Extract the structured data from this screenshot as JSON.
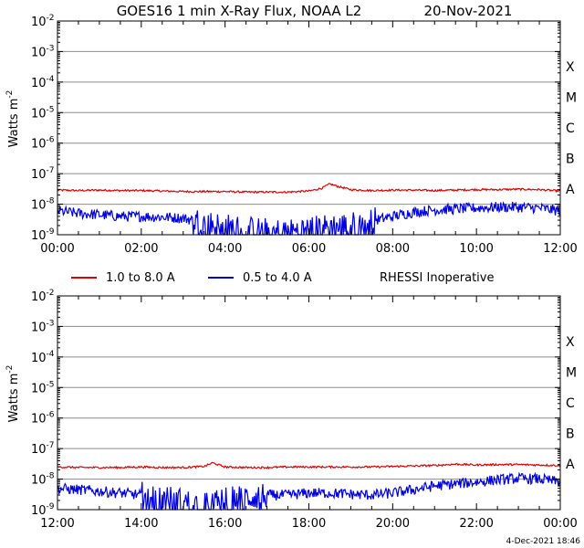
{
  "header": {
    "title": "GOES16 1 min X-Ray Flux, NOAA L2",
    "date": "20-Nov-2021"
  },
  "legend": {
    "long_label": "1.0 to 8.0 A",
    "short_label": "0.5 to 4.0 A",
    "note": "RHESSI Inoperative"
  },
  "footer": {
    "timestamp": "4-Dec-2021 18:46"
  },
  "chart_data": [
    {
      "type": "line",
      "ylabel": "Watts m",
      "ylabel_exponent": "-2",
      "y_scale": "log",
      "ylim": [
        1e-09,
        0.01
      ],
      "y_ticks": [
        {
          "base": "10",
          "exp": "-9"
        },
        {
          "base": "10",
          "exp": "-8"
        },
        {
          "base": "10",
          "exp": "-7"
        },
        {
          "base": "10",
          "exp": "-6"
        },
        {
          "base": "10",
          "exp": "-5"
        },
        {
          "base": "10",
          "exp": "-4"
        },
        {
          "base": "10",
          "exp": "-3"
        },
        {
          "base": "10",
          "exp": "-2"
        }
      ],
      "flare_classes": [
        "A",
        "B",
        "C",
        "M",
        "X"
      ],
      "x_ticks": [
        "00:00",
        "02:00",
        "04:00",
        "06:00",
        "08:00",
        "10:00",
        "12:00"
      ],
      "xlim_hours": [
        0,
        12
      ],
      "grid": true,
      "series": [
        {
          "name": "1.0 to 8.0 A",
          "color": "#e00000",
          "x_hours": [
            0,
            0.5,
            1,
            1.5,
            2,
            2.5,
            3,
            3.5,
            4,
            4.5,
            5,
            5.5,
            6,
            6.3,
            6.5,
            6.7,
            7,
            7.5,
            8,
            8.5,
            9,
            9.5,
            10,
            10.5,
            11,
            11.5,
            12
          ],
          "values": [
            2.9e-08,
            2.8e-08,
            2.9e-08,
            2.8e-08,
            2.8e-08,
            2.7e-08,
            2.6e-08,
            2.6e-08,
            2.6e-08,
            2.5e-08,
            2.5e-08,
            2.5e-08,
            2.7e-08,
            3.3e-08,
            4.6e-08,
            3.8e-08,
            3e-08,
            2.8e-08,
            2.9e-08,
            2.9e-08,
            2.8e-08,
            2.9e-08,
            3e-08,
            3e-08,
            3.1e-08,
            3e-08,
            2.7e-08
          ]
        },
        {
          "name": "0.5 to 4.0 A",
          "color": "#0000e0",
          "x_hours": [
            0,
            0.5,
            1,
            1.5,
            2,
            2.5,
            3,
            3.5,
            4,
            4.5,
            5,
            5.5,
            6,
            6.5,
            7,
            7.5,
            8,
            8.5,
            9,
            9.5,
            10,
            10.5,
            11,
            11.5,
            12
          ],
          "values": [
            6e-09,
            5e-09,
            4.5e-09,
            4e-09,
            4e-09,
            3.8e-09,
            3.5e-09,
            2.5e-09,
            1.8e-09,
            1.5e-09,
            1.3e-09,
            1.2e-09,
            1.5e-09,
            1.8e-09,
            2e-09,
            2.8e-09,
            4e-09,
            5.5e-09,
            6.5e-09,
            7e-09,
            7.5e-09,
            8e-09,
            8e-09,
            7.5e-09,
            6e-09
          ]
        }
      ]
    },
    {
      "type": "line",
      "ylabel": "Watts m",
      "ylabel_exponent": "-2",
      "y_scale": "log",
      "ylim": [
        1e-09,
        0.01
      ],
      "y_ticks": [
        {
          "base": "10",
          "exp": "-9"
        },
        {
          "base": "10",
          "exp": "-8"
        },
        {
          "base": "10",
          "exp": "-7"
        },
        {
          "base": "10",
          "exp": "-6"
        },
        {
          "base": "10",
          "exp": "-5"
        },
        {
          "base": "10",
          "exp": "-4"
        },
        {
          "base": "10",
          "exp": "-3"
        },
        {
          "base": "10",
          "exp": "-2"
        }
      ],
      "flare_classes": [
        "A",
        "B",
        "C",
        "M",
        "X"
      ],
      "x_ticks": [
        "12:00",
        "14:00",
        "16:00",
        "18:00",
        "20:00",
        "22:00",
        "00:00"
      ],
      "xlim_hours": [
        12,
        24
      ],
      "grid": true,
      "series": [
        {
          "name": "1.0 to 8.0 A",
          "color": "#e00000",
          "x_hours": [
            12,
            12.5,
            13,
            13.5,
            14,
            14.5,
            15,
            15.5,
            15.7,
            16,
            16.5,
            17,
            17.5,
            18,
            18.5,
            19,
            19.5,
            20,
            20.5,
            21,
            21.5,
            22,
            22.5,
            23,
            23.5,
            24
          ],
          "values": [
            2.5e-08,
            2.4e-08,
            2.4e-08,
            2.4e-08,
            2.5e-08,
            2.4e-08,
            2.4e-08,
            2.6e-08,
            3.4e-08,
            2.5e-08,
            2.4e-08,
            2.4e-08,
            2.5e-08,
            2.5e-08,
            2.5e-08,
            2.5e-08,
            2.5e-08,
            2.6e-08,
            2.7e-08,
            2.8e-08,
            3.1e-08,
            2.9e-08,
            3e-08,
            3e-08,
            2.9e-08,
            2.8e-08
          ]
        },
        {
          "name": "0.5 to 4.0 A",
          "color": "#0000e0",
          "x_hours": [
            12,
            12.5,
            13,
            13.5,
            14,
            14.5,
            15,
            15.5,
            16,
            16.5,
            17,
            17.5,
            18,
            18.5,
            19,
            19.5,
            20,
            20.5,
            21,
            21.5,
            22,
            22.5,
            23,
            23.5,
            24
          ],
          "values": [
            5e-09,
            4.5e-09,
            4e-09,
            3.5e-09,
            3e-09,
            2.5e-09,
            1.8e-09,
            1.3e-09,
            2e-09,
            2.5e-09,
            3e-09,
            3e-09,
            3.5e-09,
            3.5e-09,
            3.2e-09,
            3e-09,
            3.5e-09,
            4.5e-09,
            6e-09,
            7e-09,
            8e-09,
            9.5e-09,
            1.05e-08,
            1e-08,
            8e-09
          ]
        }
      ]
    }
  ]
}
